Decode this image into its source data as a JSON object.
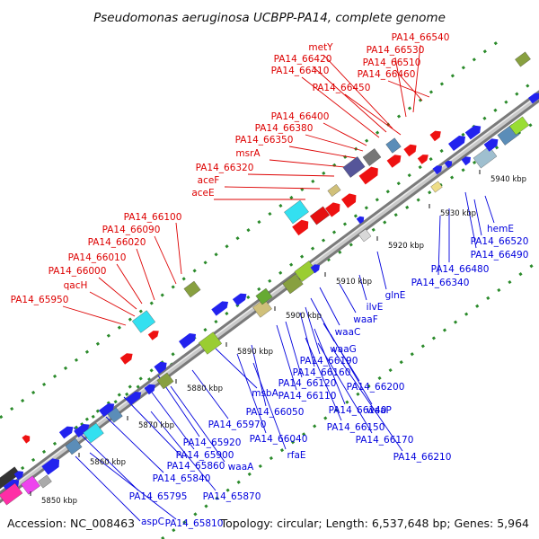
{
  "title": "Pseudomonas aeruginosa UCBPP-PA14, complete genome",
  "footer": {
    "accession": "Accession: NC_008463",
    "summary": "Topology: circular; Length: 6,537,648 bp; Genes: 5,964"
  },
  "colors": {
    "forward_label": "#dd0000",
    "reverse_label": "#0000dd",
    "backbone": "#9a9a9a",
    "tick_dots": "#2a8a2a"
  },
  "kbp_ticks": [
    "5850 kbp",
    "5860 kbp",
    "5870 kbp",
    "5880 kbp",
    "5890 kbp",
    "5900 kbp",
    "5910 kbp",
    "5920 kbp",
    "5930 kbp",
    "5940 kbp"
  ],
  "forward_labels": [
    "PA14_66540",
    "metY",
    "PA14_66530",
    "PA14_66420",
    "PA14_66510",
    "PA14_66410",
    "PA14_66460",
    "PA14_66450",
    "PA14_66400",
    "PA14_66380",
    "PA14_66350",
    "msrA",
    "PA14_66320",
    "aceF",
    "aceE",
    "PA14_66100",
    "PA14_66090",
    "PA14_66020",
    "PA14_66010",
    "PA14_66000",
    "qacH",
    "PA14_65950"
  ],
  "reverse_labels": [
    "hemE",
    "PA14_66520",
    "PA14_66490",
    "PA14_66480",
    "PA14_66340",
    "glnE",
    "ilvE",
    "waaF",
    "waaC",
    "waaG",
    "PA14_66190",
    "PA14_66160",
    "PA14_66200",
    "PA14_66120",
    "msbA",
    "PA14_66110",
    "PA14_66140",
    "waaP",
    "PA14_66050",
    "PA14_66150",
    "PA14_65970",
    "PA14_66170",
    "PA14_66040",
    "PA14_65920",
    "rfaE",
    "PA14_66210",
    "PA14_65900",
    "PA14_65860",
    "waaA",
    "PA14_65840",
    "PA14_65870",
    "PA14_65795",
    "aspC",
    "PA14_65810"
  ]
}
